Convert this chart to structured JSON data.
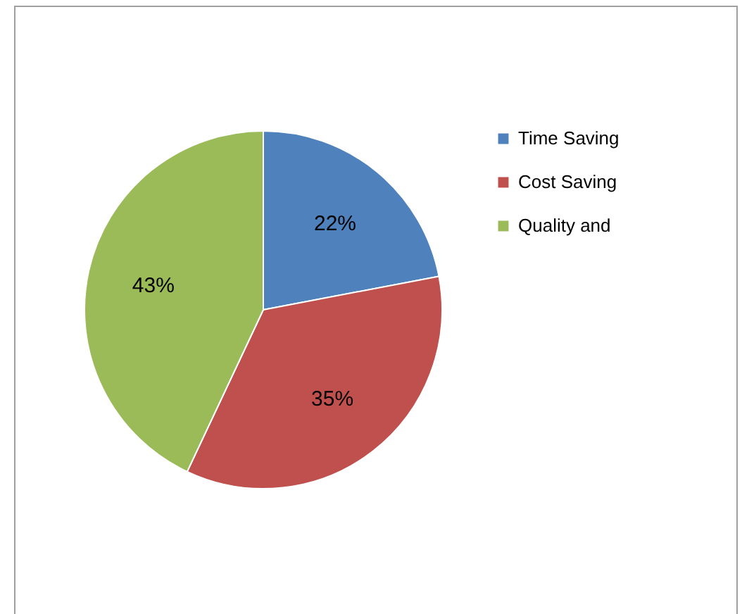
{
  "chart_data": {
    "type": "pie",
    "categories": [
      "Time Saving",
      "Cost Saving",
      "Quality and"
    ],
    "values": [
      22,
      35,
      43
    ],
    "value_labels": [
      "22%",
      "35%",
      "43%"
    ],
    "colors": [
      "#4f81bd",
      "#c0504d",
      "#9bbb59"
    ],
    "legend": "right"
  }
}
